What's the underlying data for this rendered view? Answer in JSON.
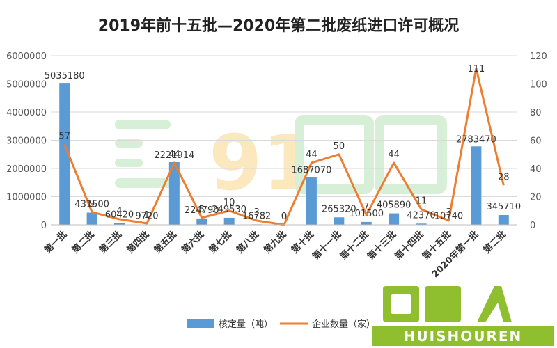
{
  "chart_data": {
    "type": "bar",
    "title": "2019年前十五批—2020年第二批废纸进口许可概况",
    "categories": [
      "第一批",
      "第二批",
      "第三批",
      "第四批",
      "第五批",
      "第六批",
      "第七批",
      "第八批",
      "第九批",
      "第十批",
      "第十一批",
      "第十二批",
      "第十三批",
      "第十四批",
      "第十五批",
      "2020年第一批",
      "第二批"
    ],
    "series": [
      {
        "name": "核定量（吨）",
        "type": "bar",
        "axis": "left",
        "color": "#5B9BD5",
        "values": [
          5035180,
          431500,
          60420,
          9720,
          2221914,
          224790,
          249530,
          16782,
          0,
          1687070,
          265320,
          101500,
          405890,
          42370,
          10740,
          2783470,
          345710
        ]
      },
      {
        "name": "企业数量（家）",
        "type": "line",
        "axis": "right",
        "color": "#ED7D31",
        "values": [
          57,
          9,
          4,
          1,
          44,
          5,
          10,
          3,
          0,
          44,
          50,
          7,
          44,
          11,
          3,
          111,
          28
        ]
      }
    ],
    "ylim_left": [
      0,
      6000000
    ],
    "ylim_right": [
      0,
      120
    ],
    "yticks_left": [
      "0",
      "1000000",
      "2000000",
      "3000000",
      "4000000",
      "5000000",
      "6000000"
    ],
    "yticks_right": [
      "0",
      "20",
      "40",
      "60",
      "80",
      "100",
      "120"
    ],
    "grid": true,
    "legend": "bottom"
  },
  "watermark": {
    "text": "回收人",
    "latin": "HUISHOUREN"
  }
}
